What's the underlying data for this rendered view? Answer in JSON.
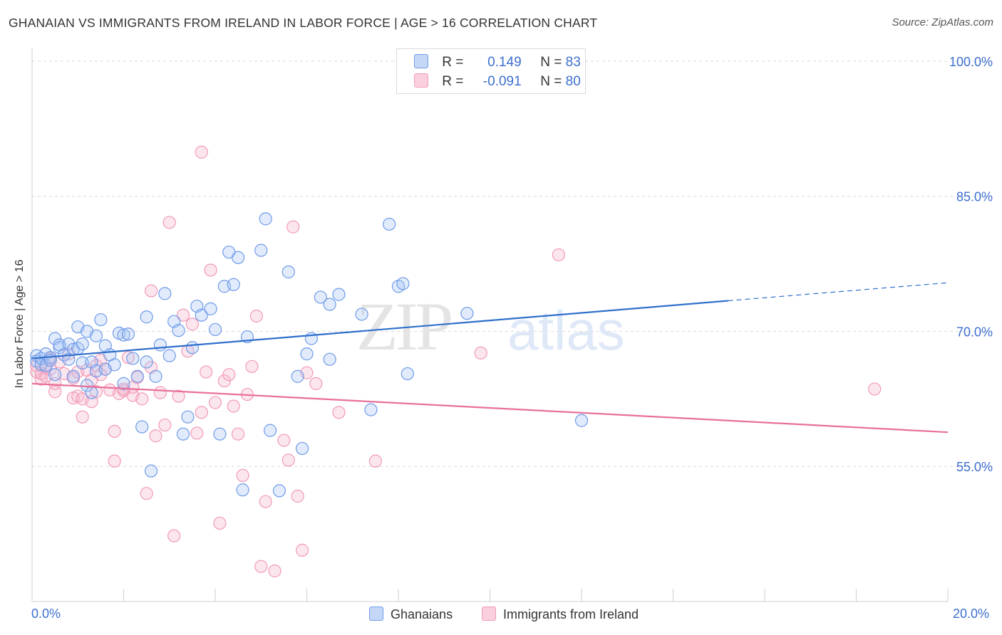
{
  "title": "GHANAIAN VS IMMIGRANTS FROM IRELAND IN LABOR FORCE | AGE > 16 CORRELATION CHART",
  "source": "Source: ZipAtlas.com",
  "watermark": {
    "zip": "ZIP",
    "atlas": "atlas"
  },
  "legend": {
    "rows": [
      {
        "r_label": "R =",
        "r_value": "0.149",
        "n_label": "N =",
        "n_value": "83"
      },
      {
        "r_label": "R =",
        "r_value": "-0.091",
        "n_label": "N =",
        "n_value": "80"
      }
    ]
  },
  "bottom_legend": {
    "ghanaians": "Ghanaians",
    "ireland": "Immigrants from Ireland"
  },
  "x_labels": {
    "left": "0.0%",
    "right": "20.0%"
  },
  "colors": {
    "blue": "#6f9be8",
    "blue_line": "#2f6fcc",
    "pink": "#f19ab8",
    "pink_line": "#e8709a",
    "label": "#3d6fcf",
    "grid": "#d9d9d9"
  },
  "chart_data": {
    "type": "scatter",
    "title": "GHANAIAN VS IMMIGRANTS FROM IRELAND IN LABOR FORCE | AGE > 16 CORRELATION CHART",
    "xlabel": "",
    "ylabel": "In Labor Force | Age > 16",
    "xlim": [
      0,
      20
    ],
    "ylim": [
      40,
      101.5
    ],
    "y_ticks": [
      55.0,
      70.0,
      85.0,
      100.0
    ],
    "y_tick_labels": [
      "55.0%",
      "70.0%",
      "85.0%",
      "100.0%"
    ],
    "x_tick_labels": [
      "0.0%",
      "20.0%"
    ],
    "grid": true,
    "series": [
      {
        "name": "Ghanaians",
        "r": 0.149,
        "n": 83,
        "trend": {
          "x0": 0,
          "y0": 67.0,
          "x1": 15.2,
          "y1": 73.4,
          "dash_to_x": 20,
          "dash_to_y": 75.4
        },
        "points": [
          [
            0.1,
            67.3
          ],
          [
            0.1,
            66.7
          ],
          [
            0.2,
            66.3
          ],
          [
            0.2,
            67.0
          ],
          [
            0.3,
            67.5
          ],
          [
            0.3,
            66.2
          ],
          [
            0.4,
            67.1
          ],
          [
            0.4,
            66.8
          ],
          [
            0.5,
            69.2
          ],
          [
            0.5,
            65.2
          ],
          [
            0.6,
            68.2
          ],
          [
            0.6,
            68.5
          ],
          [
            0.7,
            67.4
          ],
          [
            0.8,
            68.6
          ],
          [
            0.8,
            66.9
          ],
          [
            0.9,
            68.0
          ],
          [
            0.9,
            65.0
          ],
          [
            1.0,
            70.5
          ],
          [
            1.0,
            68.1
          ],
          [
            1.1,
            68.6
          ],
          [
            1.1,
            66.5
          ],
          [
            1.2,
            70.0
          ],
          [
            1.2,
            64.0
          ],
          [
            1.3,
            66.6
          ],
          [
            1.3,
            63.2
          ],
          [
            1.4,
            69.5
          ],
          [
            1.4,
            65.6
          ],
          [
            1.5,
            71.3
          ],
          [
            1.6,
            68.4
          ],
          [
            1.6,
            65.8
          ],
          [
            1.7,
            67.4
          ],
          [
            1.8,
            66.3
          ],
          [
            1.9,
            69.8
          ],
          [
            2.0,
            69.6
          ],
          [
            2.0,
            64.2
          ],
          [
            2.1,
            69.7
          ],
          [
            2.2,
            67.0
          ],
          [
            2.3,
            65.0
          ],
          [
            2.4,
            59.4
          ],
          [
            2.5,
            71.6
          ],
          [
            2.5,
            66.6
          ],
          [
            2.6,
            54.5
          ],
          [
            2.7,
            65.0
          ],
          [
            2.8,
            68.5
          ],
          [
            2.9,
            74.2
          ],
          [
            3.0,
            67.3
          ],
          [
            3.1,
            71.1
          ],
          [
            3.2,
            70.1
          ],
          [
            3.3,
            58.6
          ],
          [
            3.4,
            60.5
          ],
          [
            3.5,
            68.2
          ],
          [
            3.6,
            72.8
          ],
          [
            3.7,
            71.8
          ],
          [
            3.9,
            72.5
          ],
          [
            4.0,
            70.2
          ],
          [
            4.1,
            58.6
          ],
          [
            4.2,
            75.0
          ],
          [
            4.3,
            78.8
          ],
          [
            4.4,
            75.2
          ],
          [
            4.5,
            78.2
          ],
          [
            4.6,
            52.4
          ],
          [
            4.7,
            69.4
          ],
          [
            5.0,
            79.0
          ],
          [
            5.1,
            82.5
          ],
          [
            5.2,
            59.0
          ],
          [
            5.4,
            52.3
          ],
          [
            5.6,
            76.6
          ],
          [
            5.8,
            65.0
          ],
          [
            5.9,
            57.0
          ],
          [
            6.0,
            67.5
          ],
          [
            6.1,
            69.2
          ],
          [
            6.3,
            73.8
          ],
          [
            6.5,
            73.0
          ],
          [
            6.5,
            66.9
          ],
          [
            6.7,
            74.1
          ],
          [
            7.2,
            71.9
          ],
          [
            7.4,
            61.3
          ],
          [
            7.8,
            81.9
          ],
          [
            8.0,
            75.0
          ],
          [
            8.1,
            75.3
          ],
          [
            8.2,
            65.3
          ],
          [
            9.5,
            72.0
          ],
          [
            12.0,
            60.1
          ]
        ]
      },
      {
        "name": "Immigrants from Ireland",
        "r": -0.091,
        "n": 80,
        "trend": {
          "x0": 0,
          "y0": 64.2,
          "x1": 20,
          "y1": 58.8
        },
        "points": [
          [
            0.1,
            65.5
          ],
          [
            0.1,
            66.2
          ],
          [
            0.2,
            64.7
          ],
          [
            0.2,
            65.3
          ],
          [
            0.3,
            66.0
          ],
          [
            0.3,
            65.0
          ],
          [
            0.4,
            65.8
          ],
          [
            0.4,
            67.0
          ],
          [
            0.5,
            64.2
          ],
          [
            0.5,
            63.3
          ],
          [
            0.6,
            66.6
          ],
          [
            0.7,
            65.3
          ],
          [
            0.8,
            67.5
          ],
          [
            0.9,
            62.6
          ],
          [
            0.9,
            64.8
          ],
          [
            1.0,
            65.5
          ],
          [
            1.0,
            62.8
          ],
          [
            1.1,
            62.5
          ],
          [
            1.1,
            60.5
          ],
          [
            1.2,
            65.7
          ],
          [
            1.3,
            64.6
          ],
          [
            1.3,
            62.2
          ],
          [
            1.4,
            63.3
          ],
          [
            1.4,
            66.2
          ],
          [
            1.5,
            65.2
          ],
          [
            1.5,
            66.8
          ],
          [
            1.6,
            65.8
          ],
          [
            1.7,
            63.5
          ],
          [
            1.8,
            58.9
          ],
          [
            1.8,
            55.6
          ],
          [
            1.9,
            63.1
          ],
          [
            2.0,
            63.4
          ],
          [
            2.0,
            63.6
          ],
          [
            2.1,
            67.1
          ],
          [
            2.2,
            62.9
          ],
          [
            2.2,
            63.8
          ],
          [
            2.3,
            64.9
          ],
          [
            2.4,
            62.5
          ],
          [
            2.5,
            52.0
          ],
          [
            2.6,
            66.0
          ],
          [
            2.6,
            74.5
          ],
          [
            2.7,
            58.4
          ],
          [
            2.8,
            63.2
          ],
          [
            2.9,
            59.6
          ],
          [
            3.0,
            82.1
          ],
          [
            3.1,
            47.3
          ],
          [
            3.2,
            62.8
          ],
          [
            3.3,
            71.8
          ],
          [
            3.4,
            67.8
          ],
          [
            3.5,
            70.8
          ],
          [
            3.6,
            58.7
          ],
          [
            3.7,
            61.0
          ],
          [
            3.7,
            89.9
          ],
          [
            3.8,
            65.5
          ],
          [
            3.9,
            76.8
          ],
          [
            4.0,
            62.1
          ],
          [
            4.1,
            48.7
          ],
          [
            4.2,
            64.5
          ],
          [
            4.3,
            65.2
          ],
          [
            4.4,
            61.7
          ],
          [
            4.5,
            58.6
          ],
          [
            4.6,
            54.0
          ],
          [
            4.7,
            63.0
          ],
          [
            4.8,
            66.1
          ],
          [
            4.9,
            71.7
          ],
          [
            5.0,
            43.9
          ],
          [
            5.1,
            51.1
          ],
          [
            5.3,
            43.4
          ],
          [
            5.5,
            57.9
          ],
          [
            5.6,
            55.7
          ],
          [
            5.7,
            81.6
          ],
          [
            5.8,
            51.7
          ],
          [
            5.9,
            45.7
          ],
          [
            6.0,
            65.4
          ],
          [
            6.2,
            64.2
          ],
          [
            6.7,
            61.0
          ],
          [
            7.5,
            55.6
          ],
          [
            9.8,
            67.6
          ],
          [
            11.5,
            78.5
          ],
          [
            18.4,
            63.6
          ]
        ]
      }
    ]
  }
}
